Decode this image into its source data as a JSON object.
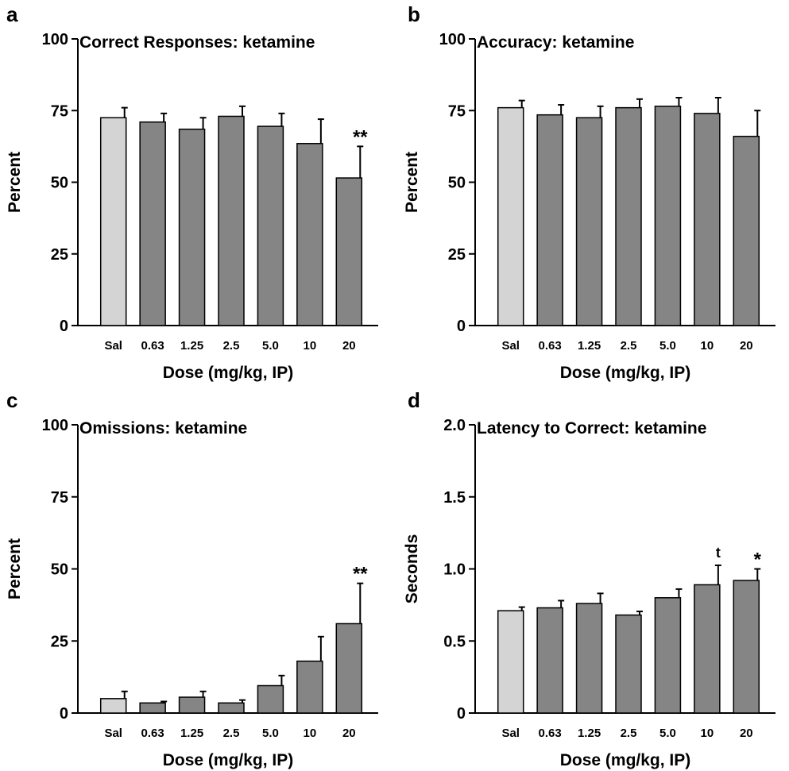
{
  "chart_data": [
    {
      "panel": "a",
      "type": "bar",
      "title": "Correct Responses: ketamine",
      "xlabel": "Dose (mg/kg, IP)",
      "ylabel": "Percent",
      "ylim": [
        0,
        100
      ],
      "yticks": [
        0,
        25,
        50,
        75,
        100
      ],
      "categories": [
        "Sal",
        "0.63",
        "1.25",
        "2.5",
        "5.0",
        "10",
        "20"
      ],
      "values": [
        72.5,
        71,
        68.5,
        73,
        69.5,
        63.5,
        51.5
      ],
      "errors": [
        3.5,
        3,
        4,
        3.5,
        4.5,
        8.5,
        11
      ],
      "annotations": [
        "",
        "",
        "",
        "",
        "",
        "",
        "**"
      ],
      "colors": [
        "#d4d4d4",
        "#858585",
        "#858585",
        "#858585",
        "#858585",
        "#858585",
        "#858585"
      ]
    },
    {
      "panel": "b",
      "type": "bar",
      "title": "Accuracy: ketamine",
      "xlabel": "Dose (mg/kg, IP)",
      "ylabel": "Percent",
      "ylim": [
        0,
        100
      ],
      "yticks": [
        0,
        25,
        50,
        75,
        100
      ],
      "categories": [
        "Sal",
        "0.63",
        "1.25",
        "2.5",
        "5.0",
        "10",
        "20"
      ],
      "values": [
        76,
        73.5,
        72.5,
        76,
        76.5,
        74,
        66
      ],
      "errors": [
        2.5,
        3.5,
        4,
        3,
        3,
        5.5,
        9
      ],
      "annotations": [
        "",
        "",
        "",
        "",
        "",
        "",
        ""
      ],
      "colors": [
        "#d4d4d4",
        "#858585",
        "#858585",
        "#858585",
        "#858585",
        "#858585",
        "#858585"
      ]
    },
    {
      "panel": "c",
      "type": "bar",
      "title": "Omissions: ketamine",
      "xlabel": "Dose (mg/kg, IP)",
      "ylabel": "Percent",
      "ylim": [
        0,
        100
      ],
      "yticks": [
        0,
        25,
        50,
        75,
        100
      ],
      "categories": [
        "Sal",
        "0.63",
        "1.25",
        "2.5",
        "5.0",
        "10",
        "20"
      ],
      "values": [
        5,
        3.5,
        5.5,
        3.5,
        9.5,
        18,
        31
      ],
      "errors": [
        2.5,
        0.5,
        2,
        1,
        3.5,
        8.5,
        14
      ],
      "annotations": [
        "",
        "",
        "",
        "",
        "",
        "",
        "**"
      ],
      "colors": [
        "#d4d4d4",
        "#858585",
        "#858585",
        "#858585",
        "#858585",
        "#858585",
        "#858585"
      ]
    },
    {
      "panel": "d",
      "type": "bar",
      "title": "Latency to Correct: ketamine",
      "xlabel": "Dose (mg/kg, IP)",
      "ylabel": "Seconds",
      "ylim": [
        0,
        2.0
      ],
      "yticks": [
        0,
        0.5,
        1.0,
        1.5,
        2.0
      ],
      "ytick_labels": [
        "0",
        "0.5",
        "1.0",
        "1.5",
        "2.0"
      ],
      "categories": [
        "Sal",
        "0.63",
        "1.25",
        "2.5",
        "5.0",
        "10",
        "20"
      ],
      "values": [
        0.71,
        0.73,
        0.76,
        0.68,
        0.8,
        0.89,
        0.92
      ],
      "errors": [
        0.025,
        0.05,
        0.07,
        0.025,
        0.06,
        0.135,
        0.08
      ],
      "annotations": [
        "",
        "",
        "",
        "",
        "",
        "t",
        "*"
      ],
      "colors": [
        "#d4d4d4",
        "#858585",
        "#858585",
        "#858585",
        "#858585",
        "#858585",
        "#858585"
      ]
    }
  ]
}
